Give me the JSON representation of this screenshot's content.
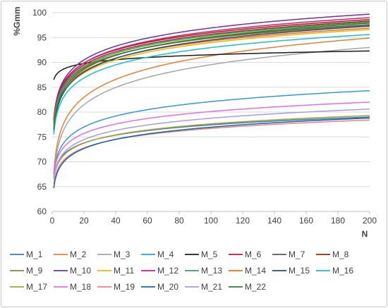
{
  "chart_data": {
    "type": "line",
    "title": "",
    "xlabel": "N",
    "ylabel": "%Gmm",
    "xlim": [
      0,
      200
    ],
    "ylim": [
      60,
      100
    ],
    "x_ticks": [
      "0",
      "20",
      "40",
      "60",
      "80",
      "100",
      "120",
      "140",
      "160",
      "180",
      "200"
    ],
    "y_ticks": [
      "60",
      "65",
      "70",
      "75",
      "80",
      "85",
      "90",
      "95",
      "100"
    ],
    "grid": "horizontal",
    "legend_position": "bottom",
    "curve_model": "y = a + b*ln(N), N from 1 to 200",
    "series": [
      {
        "name": "M_1",
        "color": "#4472C4",
        "y_at_1": 67.0,
        "y_at_200": 79.0
      },
      {
        "name": "M_2",
        "color": "#ED7D31",
        "y_at_1": 67.5,
        "y_at_200": 94.9
      },
      {
        "name": "M_3",
        "color": "#A5A5A5",
        "y_at_1": 66.5,
        "y_at_200": 93.0
      },
      {
        "name": "M_4",
        "color": "#2E9BD6",
        "y_at_1": 67.5,
        "y_at_200": 84.3
      },
      {
        "name": "M_5",
        "color": "#1A1A1A",
        "y_at_1": 86.5,
        "y_at_200": 92.3
      },
      {
        "name": "M_6",
        "color": "#C0143C",
        "y_at_1": 78.0,
        "y_at_200": 98.3
      },
      {
        "name": "M_7",
        "color": "#5A5A5A",
        "y_at_1": 77.5,
        "y_at_200": 97.6
      },
      {
        "name": "M_8",
        "color": "#8B2A0E",
        "y_at_1": 78.5,
        "y_at_200": 98.6
      },
      {
        "name": "M_9",
        "color": "#9E7A34",
        "y_at_1": 78.0,
        "y_at_200": 97.4
      },
      {
        "name": "M_10",
        "color": "#7030A0",
        "y_at_1": 78.5,
        "y_at_200": 99.7
      },
      {
        "name": "M_11",
        "color": "#F2B400",
        "y_at_1": 76.5,
        "y_at_200": 96.6
      },
      {
        "name": "M_12",
        "color": "#E0147A",
        "y_at_1": 78.0,
        "y_at_200": 99.0
      },
      {
        "name": "M_13",
        "color": "#22B14C",
        "y_at_1": 77.5,
        "y_at_200": 98.1
      },
      {
        "name": "M_14",
        "color": "#F26B1D",
        "y_at_1": 77.0,
        "y_at_200": 96.9
      },
      {
        "name": "M_15",
        "color": "#1F4E79",
        "y_at_1": 76.0,
        "y_at_200": 97.3
      },
      {
        "name": "M_16",
        "color": "#17BFD2",
        "y_at_1": 75.5,
        "y_at_200": 95.6
      },
      {
        "name": "M_17",
        "color": "#A6A62A",
        "y_at_1": 66.5,
        "y_at_200": 79.3
      },
      {
        "name": "M_18",
        "color": "#E86BE0",
        "y_at_1": 67.5,
        "y_at_200": 82.0
      },
      {
        "name": "M_19",
        "color": "#F08080",
        "y_at_1": 65.5,
        "y_at_200": 78.4
      },
      {
        "name": "M_20",
        "color": "#1565A8",
        "y_at_1": 64.7,
        "y_at_200": 78.8
      },
      {
        "name": "M_21",
        "color": "#A99CE0",
        "y_at_1": 66.5,
        "y_at_200": 80.6
      },
      {
        "name": "M_22",
        "color": "#2E7D32",
        "y_at_1": 76.5,
        "y_at_200": 97.9
      }
    ]
  }
}
